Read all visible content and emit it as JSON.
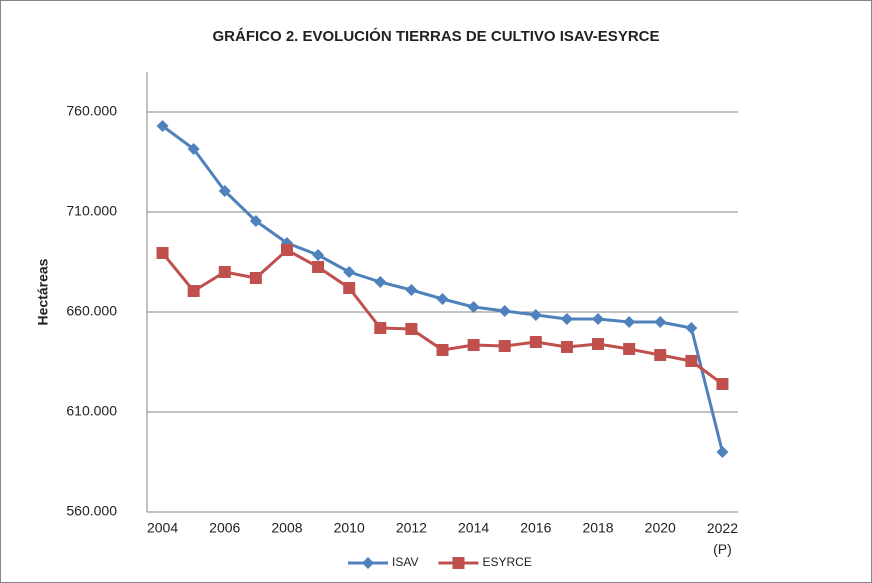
{
  "chart_data": {
    "type": "line",
    "title": "GRÁFICO 2. EVOLUCIÓN TIERRAS DE CULTIVO ISAV-ESYRCE",
    "y_label": "Hectáreas",
    "categories": [
      "2004",
      null,
      "2006",
      null,
      "2008",
      null,
      "2010",
      null,
      "2012",
      null,
      "2014",
      null,
      "2016",
      null,
      "2018",
      null,
      "2020",
      null,
      "2022\n(P)"
    ],
    "series": [
      {
        "name": "ISAV",
        "color": "#4f81bd",
        "marker": "diamond",
        "values": [
          753000,
          741500,
          720500,
          705500,
          694500,
          688500,
          680000,
          675000,
          671000,
          666500,
          662500,
          660500,
          658500,
          656500,
          656500,
          655000,
          655000,
          652000,
          590000
        ]
      },
      {
        "name": "ESYRCE",
        "color": "#c0504d",
        "marker": "square",
        "values": [
          689500,
          670500,
          680000,
          677000,
          691000,
          682500,
          672000,
          652000,
          651500,
          641000,
          643500,
          643000,
          645000,
          642500,
          644000,
          641500,
          638500,
          635500,
          624000
        ]
      }
    ],
    "ylim": [
      560000,
      780000
    ],
    "yticks": [
      {
        "value": 560000,
        "label": "560.000"
      },
      {
        "value": 610000,
        "label": "610.000"
      },
      {
        "value": 660000,
        "label": "660.000"
      },
      {
        "value": 710000,
        "label": "710.000"
      },
      {
        "value": 760000,
        "label": "760.000"
      }
    ],
    "grid": true,
    "legend": "bottom"
  }
}
